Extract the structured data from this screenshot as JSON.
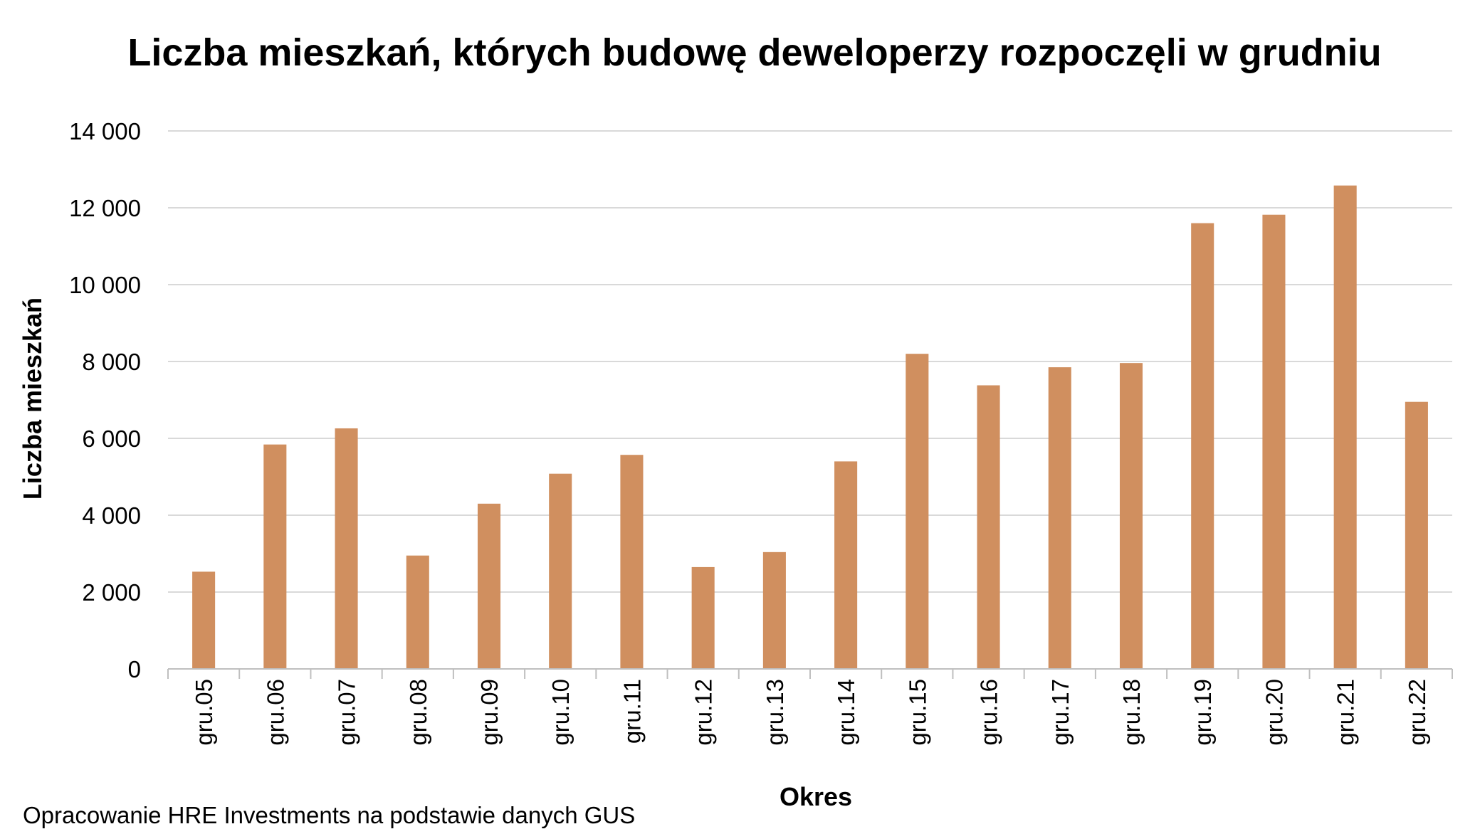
{
  "chart_data": {
    "type": "bar",
    "title": "Liczba mieszkań, których budowę deweloperzy rozpoczęli w grudniu",
    "xlabel": "Okres",
    "ylabel": "Liczba mieszkań",
    "categories": [
      "gru.05",
      "gru.06",
      "gru.07",
      "gru.08",
      "gru.09",
      "gru.10",
      "gru.11",
      "gru.12",
      "gru.13",
      "gru.14",
      "gru.15",
      "gru.16",
      "gru.17",
      "gru.18",
      "gru.19",
      "gru.20",
      "gru.21",
      "gru.22"
    ],
    "series": [
      {
        "values": [
          2530,
          5840,
          6260,
          2950,
          4300,
          5080,
          5570,
          2650,
          3040,
          5400,
          8200,
          7380,
          7850,
          7960,
          11600,
          11820,
          12580,
          6950
        ]
      }
    ],
    "ylim": [
      0,
      14000
    ],
    "yticks": [
      0,
      2000,
      4000,
      6000,
      8000,
      10000,
      12000,
      14000
    ],
    "ytick_labels": [
      "0",
      "2 000",
      "4 000",
      "6 000",
      "8 000",
      "10 000",
      "12 000",
      "14 000"
    ],
    "grid": true,
    "legend": "none",
    "bar_color": "#D08F5F",
    "grid_color": "#D9D9D9",
    "axis_color": "#BFBFBF",
    "source": "Opracowanie HRE Investments na podstawie danych GUS"
  }
}
